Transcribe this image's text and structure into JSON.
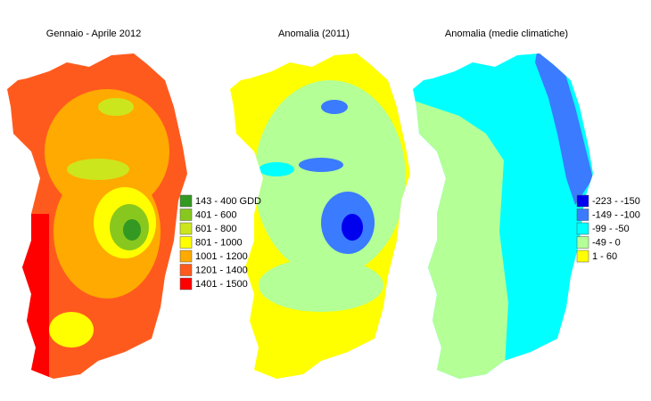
{
  "panels": [
    {
      "title": "Gennaio - Aprile 2012"
    },
    {
      "title": "Anomalia (2011)"
    },
    {
      "title": "Anomalia (medie climatiche)"
    }
  ],
  "legends": [
    {
      "items": [
        {
          "label": "143 - 400 GDD",
          "color": "#339922"
        },
        {
          "label": "401 - 600",
          "color": "#88c81e"
        },
        {
          "label": "601 - 800",
          "color": "#cce61e"
        },
        {
          "label": "801 - 1000",
          "color": "#ffff00"
        },
        {
          "label": "1001 - 1200",
          "color": "#ffaa00"
        },
        {
          "label": "1201 - 1400",
          "color": "#ff5a1e"
        },
        {
          "label": "1401 - 1500",
          "color": "#ff0000"
        }
      ]
    },
    {
      "items": [
        {
          "label": "-223 - -150",
          "color": "#0000ee"
        },
        {
          "label": "-149 - -100",
          "color": "#3a7bff"
        },
        {
          "label": "-99 - -50",
          "color": "#00ffff"
        },
        {
          "label": "-49 - 0",
          "color": "#b4ff96"
        },
        {
          "label": "1 - 60",
          "color": "#ffff00"
        }
      ]
    }
  ]
}
